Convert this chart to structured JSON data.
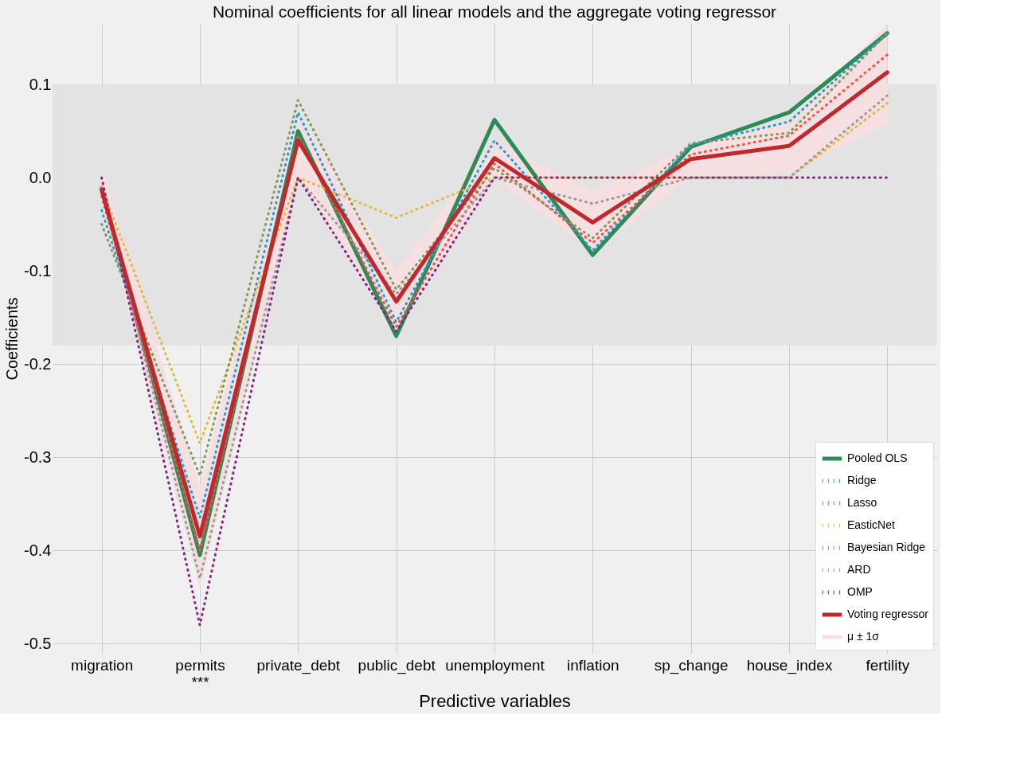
{
  "chart_data": {
    "type": "line",
    "title": "Nominal coefficients for all linear models and the aggregate voting regressor",
    "xlabel": "Predictive variables",
    "ylabel": "Coefficients",
    "annotations": [
      "μ ± 1σ"
    ],
    "categories": [
      "migration",
      "permits\n***",
      "private_debt",
      "public_debt",
      "unemployment",
      "inflation",
      "sp_change",
      "house_index",
      "fertility"
    ],
    "ylim": [
      -0.51,
      0.165
    ],
    "yticks": [
      -0.5,
      -0.4,
      -0.3,
      -0.2,
      -0.1,
      {
        "value": 0,
        "label": "0.0"
      },
      0.1
    ],
    "grid": true,
    "legend": "bottom right",
    "marker": "none",
    "bands": [
      {
        "axis": "y",
        "from": -0.18,
        "to": 0.1,
        "color": "#e3e3e3"
      }
    ],
    "series": [
      {
        "name": "Pooled OLS",
        "line_style": "solid",
        "color": "#2e8b57",
        "values": [
          -0.012,
          -0.405,
          0.05,
          -0.17,
          0.062,
          -0.083,
          0.033,
          0.07,
          0.155
        ]
      },
      {
        "name": "Ridge",
        "line_style": "dotted",
        "color": "#1f9bd8",
        "values": [
          -0.035,
          -0.365,
          0.07,
          -0.155,
          0.04,
          -0.078,
          0.035,
          0.06,
          0.155
        ]
      },
      {
        "name": "Lasso",
        "line_style": "dotted",
        "color": "#f0524a",
        "values": [
          -0.02,
          -0.4,
          0.045,
          -0.16,
          0.015,
          -0.07,
          0.025,
          0.045,
          0.132
        ]
      },
      {
        "name": "EasticNet",
        "line_style": "dotted",
        "color": "#e8b83c",
        "values": [
          -0.01,
          -0.285,
          0.0,
          -0.043,
          0.0,
          0.0,
          0.0,
          0.0,
          0.08
        ]
      },
      {
        "name": "Bayesian Ridge",
        "line_style": "dotted",
        "color": "#7f9a5a",
        "values": [
          -0.05,
          -0.32,
          0.083,
          -0.12,
          0.01,
          -0.065,
          0.037,
          0.048,
          0.155
        ]
      },
      {
        "name": "ARD",
        "line_style": "dotted",
        "color": "#9a9a9a",
        "values": [
          -0.01,
          -0.43,
          0.0,
          -0.125,
          0.0,
          -0.028,
          0.0,
          0.0,
          0.088
        ]
      },
      {
        "name": "OMP",
        "line_style": "dotted",
        "color": "#8b1f82",
        "values": [
          0.0,
          -0.48,
          0.0,
          -0.165,
          0.0,
          0.0,
          0.0,
          0.0,
          0.0
        ]
      },
      {
        "name": "Voting regressor",
        "line_style": "solid",
        "color": "#c0282d",
        "values": [
          -0.013,
          -0.385,
          0.04,
          -0.133,
          0.021,
          -0.048,
          0.02,
          0.034,
          0.113
        ],
        "lower": [
          -0.03,
          -0.44,
          0.0,
          -0.165,
          0.0,
          -0.08,
          0.0,
          0.005,
          0.058
        ],
        "upper": [
          0.01,
          -0.33,
          0.07,
          -0.1,
          0.04,
          -0.015,
          0.035,
          0.06,
          0.165
        ]
      }
    ]
  }
}
